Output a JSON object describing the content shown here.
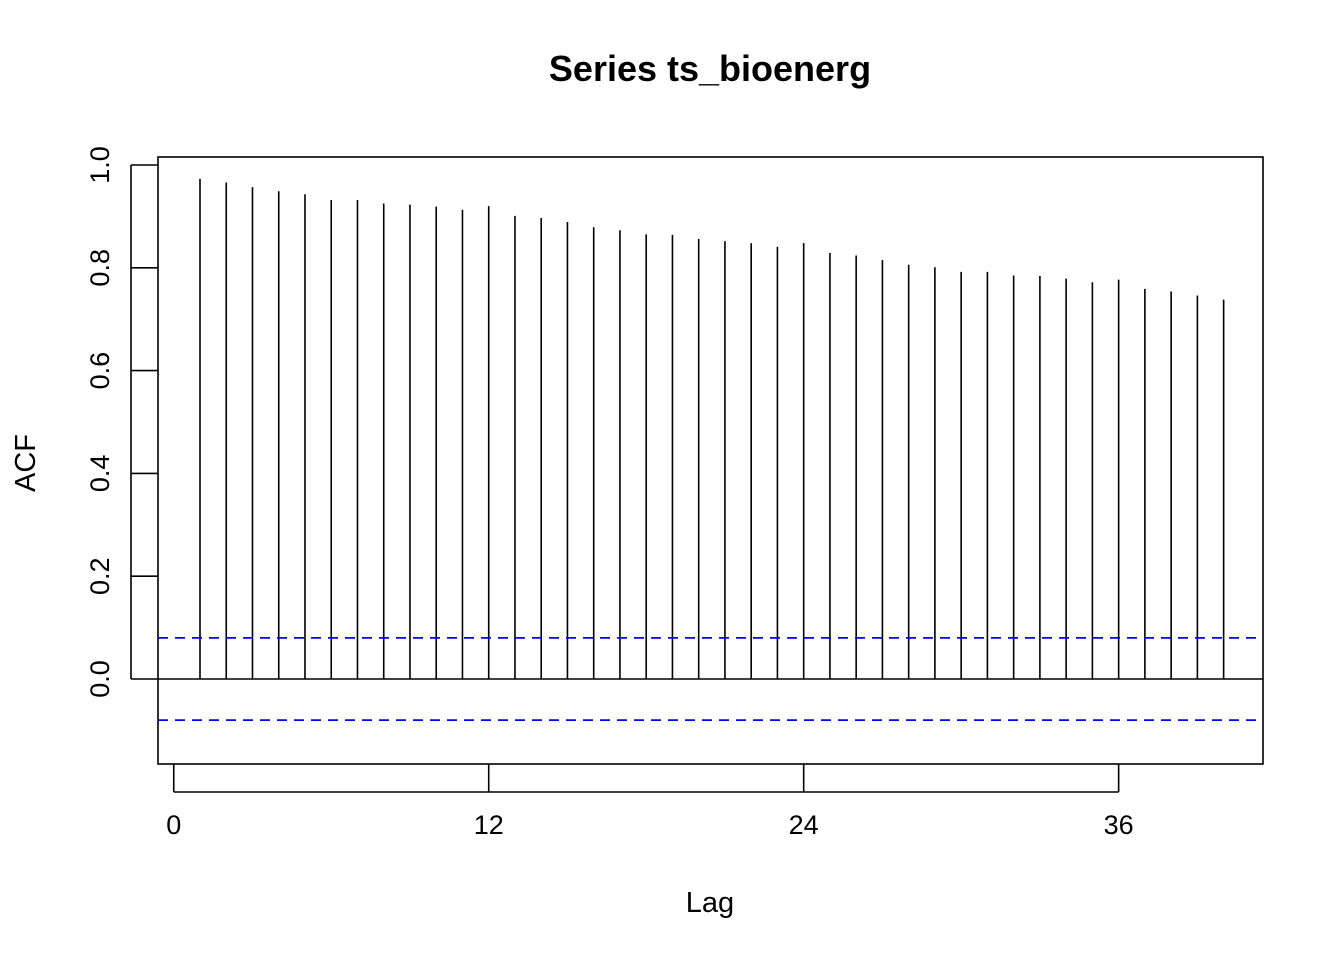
{
  "chart_data": {
    "type": "bar",
    "title": "Series  ts_bioenerg",
    "xlabel": "Lag",
    "ylabel": "ACF",
    "xlim": [
      -0.6,
      41.5
    ],
    "ylim": [
      -0.165,
      1.0
    ],
    "x_ticks": [
      0,
      12,
      24,
      36
    ],
    "y_ticks": [
      0.0,
      0.2,
      0.4,
      0.6,
      0.8,
      1.0
    ],
    "y_tick_labels": [
      "0.0",
      "0.2",
      "0.4",
      "0.6",
      "0.8",
      "1.0"
    ],
    "lags": [
      1,
      2,
      3,
      4,
      5,
      6,
      7,
      8,
      9,
      10,
      11,
      12,
      13,
      14,
      15,
      16,
      17,
      18,
      19,
      20,
      21,
      22,
      23,
      24,
      25,
      26,
      27,
      28,
      29,
      30,
      31,
      32,
      33,
      34,
      35,
      36,
      37,
      38,
      39,
      40
    ],
    "acf": [
      0.973,
      0.966,
      0.957,
      0.949,
      0.943,
      0.932,
      0.932,
      0.925,
      0.923,
      0.919,
      0.913,
      0.92,
      0.901,
      0.897,
      0.889,
      0.879,
      0.873,
      0.865,
      0.864,
      0.856,
      0.852,
      0.848,
      0.841,
      0.848,
      0.829,
      0.824,
      0.815,
      0.806,
      0.801,
      0.792,
      0.792,
      0.785,
      0.784,
      0.779,
      0.772,
      0.777,
      0.759,
      0.754,
      0.746,
      0.738
    ],
    "confidence_bound": 0.08,
    "grid": false,
    "colors": {
      "bars": "#000000",
      "confidence": "#0000ff",
      "zero_line": "#000000",
      "frame": "#000000"
    }
  }
}
